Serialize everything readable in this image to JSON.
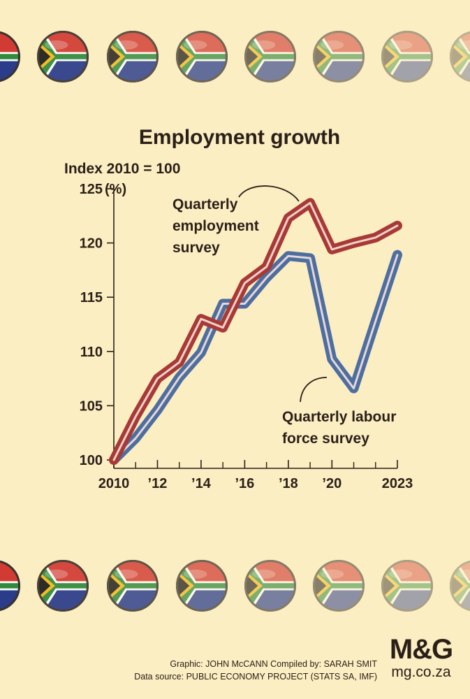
{
  "chart_data": {
    "type": "line",
    "title": "Employment growth",
    "subtitle": "Index 2010 = 100",
    "y_unit": "(%)",
    "ylim": [
      100,
      125
    ],
    "y_ticks": [
      100,
      105,
      110,
      115,
      120,
      125
    ],
    "y_tick_labels": [
      "100",
      "105",
      "110",
      "115",
      "120",
      "125"
    ],
    "xlim": [
      2010,
      2023
    ],
    "x_ticks": [
      2010,
      2012,
      2014,
      2016,
      2018,
      2020,
      2023
    ],
    "x_tick_labels": [
      "2010",
      "’12",
      "’14",
      "’16",
      "’18",
      "’20",
      "2023"
    ],
    "x_minor_ticks": [
      2011,
      2013,
      2015,
      2017,
      2019,
      2021,
      2022
    ],
    "grid": false,
    "series": [
      {
        "name": "Quarterly employment survey",
        "label_lines": [
          "Quarterly",
          "employment",
          "survey"
        ],
        "color": "#a83a36",
        "x": [
          2010,
          2011,
          2012,
          2013,
          2014,
          2015,
          2016,
          2017,
          2018,
          2019,
          2020,
          2021,
          2022,
          2023
        ],
        "values": [
          100.0,
          104.0,
          107.5,
          109.0,
          113.0,
          112.2,
          116.3,
          117.8,
          122.3,
          123.7,
          119.4,
          120.0,
          120.5,
          121.6
        ]
      },
      {
        "name": "Quarterly labour force survey",
        "label_lines": [
          "Quarterly labour",
          "force survey"
        ],
        "color": "#4e6ea0",
        "x": [
          2010,
          2011,
          2012,
          2013,
          2014,
          2015,
          2016,
          2017,
          2018,
          2019,
          2020,
          2021,
          2022,
          2023
        ],
        "values": [
          100.0,
          102.0,
          104.6,
          107.6,
          109.9,
          114.4,
          114.4,
          116.8,
          118.8,
          118.6,
          109.3,
          106.6,
          112.8,
          118.9
        ]
      }
    ]
  },
  "footer": {
    "credit_line": "Graphic: JOHN McCANN  Compiled by: SARAH SMIT",
    "source_line": "Data source: PUBLIC ECONOMY PROJECT (STATS SA, IMF)",
    "logo_text": "M&G",
    "site": "mg.co.za"
  },
  "colors": {
    "background": "#fbeec2",
    "text": "#2b2019",
    "flag_green": "#2f8a3c",
    "flag_red": "#d23b33",
    "flag_blue": "#2a3c8a",
    "flag_gold": "#f2b818"
  },
  "decoration": {
    "border_icon": "south-africa-flag-icon",
    "flag_opacities": [
      1,
      0.92,
      0.82,
      0.72,
      0.62,
      0.52,
      0.42,
      0.32
    ]
  }
}
